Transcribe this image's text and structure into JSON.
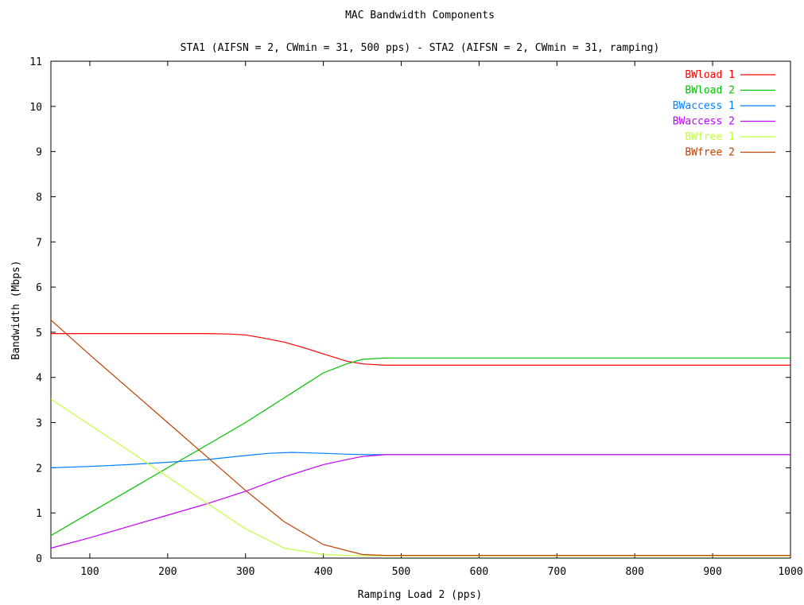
{
  "chart_data": {
    "type": "line",
    "title": "MAC Bandwidth Components",
    "subtitle": "STA1 (AIFSN = 2, CWmin = 31, 500 pps) - STA2 (AIFSN = 2, CWmin = 31, ramping)",
    "xlabel": "Ramping Load 2 (pps)",
    "ylabel": "Bandwidth (Mbps)",
    "xlim": [
      50,
      1000
    ],
    "ylim": [
      0,
      11
    ],
    "xticks": [
      100,
      200,
      300,
      400,
      500,
      600,
      700,
      800,
      900,
      1000
    ],
    "yticks": [
      0,
      1,
      2,
      3,
      4,
      5,
      6,
      7,
      8,
      9,
      10,
      11
    ],
    "grid": false,
    "legend_position": "top-right",
    "series": [
      {
        "name": "BWload 1",
        "color": "#ff0000",
        "x": [
          50,
          100,
          150,
          200,
          250,
          280,
          300,
          320,
          350,
          380,
          400,
          430,
          450,
          480,
          500,
          600,
          700,
          800,
          900,
          1000
        ],
        "y": [
          4.97,
          4.97,
          4.97,
          4.97,
          4.97,
          4.96,
          4.94,
          4.88,
          4.78,
          4.63,
          4.52,
          4.36,
          4.3,
          4.27,
          4.27,
          4.27,
          4.27,
          4.27,
          4.27,
          4.27
        ]
      },
      {
        "name": "BWload 2",
        "color": "#00c000",
        "x": [
          50,
          100,
          150,
          200,
          250,
          300,
          350,
          400,
          430,
          450,
          480,
          500,
          600,
          700,
          800,
          900,
          1000
        ],
        "y": [
          0.5,
          1.0,
          1.5,
          2.0,
          2.5,
          3.0,
          3.55,
          4.1,
          4.3,
          4.4,
          4.43,
          4.43,
          4.43,
          4.43,
          4.43,
          4.43,
          4.43
        ]
      },
      {
        "name": "BWaccess 1",
        "color": "#0080ff",
        "x": [
          50,
          100,
          150,
          200,
          250,
          300,
          330,
          360,
          400,
          430,
          460,
          480,
          500,
          600,
          700,
          800,
          900,
          1000
        ],
        "y": [
          2.0,
          2.03,
          2.07,
          2.12,
          2.18,
          2.27,
          2.32,
          2.34,
          2.32,
          2.3,
          2.29,
          2.29,
          2.29,
          2.29,
          2.29,
          2.29,
          2.29,
          2.29
        ]
      },
      {
        "name": "BWaccess 2",
        "color": "#c000ff",
        "x": [
          50,
          100,
          150,
          200,
          250,
          300,
          350,
          400,
          430,
          450,
          480,
          500,
          600,
          700,
          800,
          900,
          1000
        ],
        "y": [
          0.22,
          0.45,
          0.7,
          0.95,
          1.2,
          1.48,
          1.8,
          2.07,
          2.18,
          2.25,
          2.29,
          2.29,
          2.29,
          2.29,
          2.29,
          2.29,
          2.29
        ]
      },
      {
        "name": "BWfree 1",
        "color": "#c0ff40",
        "x": [
          50,
          100,
          150,
          200,
          250,
          300,
          350,
          400,
          450,
          480,
          500,
          600,
          700,
          800,
          900,
          1000
        ],
        "y": [
          3.52,
          2.95,
          2.38,
          1.8,
          1.22,
          0.65,
          0.22,
          0.08,
          0.05,
          0.05,
          0.05,
          0.05,
          0.05,
          0.05,
          0.05,
          0.05
        ]
      },
      {
        "name": "BWfree 2",
        "color": "#c04000",
        "x": [
          50,
          100,
          150,
          200,
          250,
          300,
          350,
          400,
          450,
          480,
          500,
          600,
          700,
          800,
          900,
          1000
        ],
        "y": [
          5.27,
          4.5,
          3.75,
          3.0,
          2.25,
          1.5,
          0.8,
          0.3,
          0.08,
          0.06,
          0.06,
          0.06,
          0.06,
          0.06,
          0.06,
          0.06
        ]
      }
    ]
  }
}
